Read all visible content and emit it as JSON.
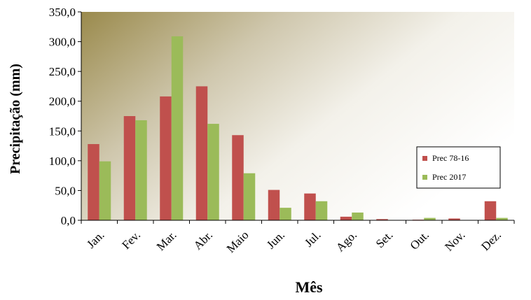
{
  "chart_data": {
    "type": "bar",
    "categories": [
      "Jan.",
      "Fev.",
      "Mar.",
      "Abr.",
      "Maio",
      "Jun.",
      "Jul.",
      "Ago.",
      "Set.",
      "Out.",
      "Nov.",
      "Dez."
    ],
    "series": [
      {
        "name": "Prec 78-16",
        "color": "#c0504d",
        "values": [
          128,
          175,
          208,
          225,
          143,
          51,
          45,
          6,
          2,
          1,
          3,
          32
        ]
      },
      {
        "name": "Prec 2017",
        "color": "#9bbb59",
        "values": [
          99,
          168,
          309,
          162,
          79,
          21,
          32,
          13,
          0,
          4,
          0,
          4
        ]
      }
    ],
    "xlabel": "Mês",
    "ylabel": "Precipitação (mm)",
    "ylim": [
      0,
      350
    ],
    "yticks": [
      "0,0",
      "50,0",
      "100,0",
      "150,0",
      "200,0",
      "250,0",
      "300,0",
      "350,0"
    ],
    "ytick_values": [
      0,
      50,
      100,
      150,
      200,
      250,
      300,
      350
    ],
    "grid": false,
    "legend_position": "right",
    "plot_background": "gradient olive-gold to white"
  }
}
